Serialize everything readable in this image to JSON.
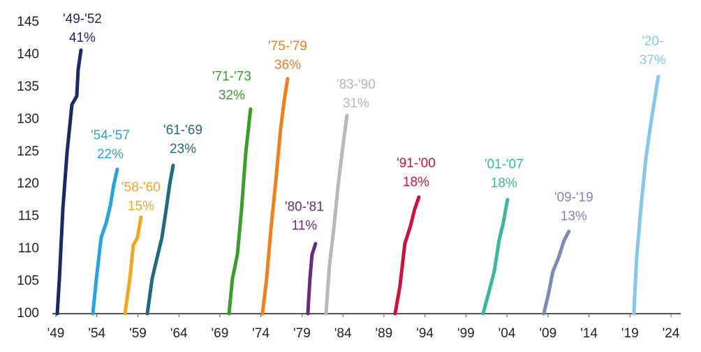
{
  "chart_data": {
    "type": "line",
    "xlim": [
      1949,
      2024
    ],
    "xticks": [
      {
        "value": 1949,
        "label": "'49"
      },
      {
        "value": 1954,
        "label": "'54"
      },
      {
        "value": 1959,
        "label": "'59"
      },
      {
        "value": 1964,
        "label": "'64"
      },
      {
        "value": 1969,
        "label": "'69"
      },
      {
        "value": 1974,
        "label": "'74"
      },
      {
        "value": 1979,
        "label": "'79"
      },
      {
        "value": 1984,
        "label": "'84"
      },
      {
        "value": 1989,
        "label": "'89"
      },
      {
        "value": 1994,
        "label": "'94"
      },
      {
        "value": 1999,
        "label": "'99"
      },
      {
        "value": 2004,
        "label": "'04"
      },
      {
        "value": 2009,
        "label": "'09"
      },
      {
        "value": 2014,
        "label": "'14"
      },
      {
        "value": 2019,
        "label": "'19"
      },
      {
        "value": 2024,
        "label": "'24"
      }
    ],
    "ylim": [
      100,
      145
    ],
    "yticks": [
      100,
      105,
      110,
      115,
      120,
      125,
      130,
      135,
      140,
      145
    ],
    "grid": false,
    "series": [
      {
        "name": "'49-'52",
        "label": "41%",
        "color": "#1b2a66",
        "x": [
          1949.17,
          1949.43,
          1949.85,
          1950.36,
          1950.96,
          1951.55,
          1951.72,
          1952.06
        ],
        "values": [
          100,
          105.4,
          116.1,
          124.8,
          132.3,
          133.6,
          137.7,
          140.7
        ]
      },
      {
        "name": "'54-'57",
        "label": "22%",
        "color": "#29a3dc",
        "x": [
          1953.51,
          1953.94,
          1954.53,
          1955.13,
          1955.64,
          1956.06,
          1956.49
        ],
        "values": [
          100,
          105.4,
          111.8,
          114,
          116.7,
          119.9,
          122.3
        ]
      },
      {
        "name": "'58-'60",
        "label": "15%",
        "color": "#f0a81c",
        "x": [
          1957.43,
          1958.02,
          1958.45,
          1958.96,
          1959.38
        ],
        "values": [
          100,
          105.4,
          110.6,
          111.8,
          114.9
        ]
      },
      {
        "name": "'61-'69",
        "label": "23%",
        "color": "#1f6b7f",
        "x": [
          1960.15,
          1960.74,
          1961.43,
          1961.94,
          1962.45,
          1962.87,
          1963.3
        ],
        "values": [
          100,
          105.4,
          109.1,
          111.8,
          116.1,
          119.9,
          122.9
        ]
      },
      {
        "name": "'71-'73",
        "label": "32%",
        "color": "#3a9e2a",
        "x": [
          1970.11,
          1970.53,
          1971.13,
          1971.64,
          1972.15,
          1972.74
        ],
        "values": [
          100,
          105.4,
          109.1,
          116.1,
          124.8,
          131.6
        ]
      },
      {
        "name": "'75-'79",
        "label": "36%",
        "color": "#f07f1e",
        "x": [
          1974.19,
          1974.7,
          1975.21,
          1975.81,
          1976.4,
          1976.83,
          1977.26
        ],
        "values": [
          100,
          105.4,
          112.9,
          120.4,
          128.5,
          132.8,
          136.3
        ]
      },
      {
        "name": "'80-'81",
        "label": "11%",
        "color": "#6b2a7a",
        "x": [
          1979.72,
          1979.98,
          1980.23,
          1980.66
        ],
        "values": [
          100,
          105.4,
          109.1,
          110.8
        ]
      },
      {
        "name": "'83-'90",
        "label": "31%",
        "color": "#b8b8b8",
        "x": [
          1981.94,
          1982.36,
          1982.87,
          1983.38,
          1983.89,
          1984.49
        ],
        "values": [
          100,
          107.5,
          112.9,
          119.4,
          124.8,
          130.6
        ]
      },
      {
        "name": "'91-'00",
        "label": "18%",
        "color": "#c8143c",
        "x": [
          1990.36,
          1990.96,
          1991.55,
          1992.23,
          1992.74,
          1993.26
        ],
        "values": [
          100,
          104.3,
          110.8,
          113.5,
          116.1,
          118
        ]
      },
      {
        "name": "'01-'07",
        "label": "18%",
        "color": "#3ab7a0",
        "x": [
          2001.09,
          2001.77,
          2002.45,
          2003.04,
          2003.55,
          2004.06
        ],
        "values": [
          100,
          103.2,
          106.5,
          111.3,
          114,
          117.6
        ]
      },
      {
        "name": "'09-'19",
        "label": "13%",
        "color": "#7b8ab8",
        "x": [
          2008.49,
          2009.0,
          2009.6,
          2010.28,
          2010.96,
          2011.55
        ],
        "values": [
          100,
          102.7,
          106.5,
          108.6,
          111.3,
          112.7
        ]
      },
      {
        "name": "'20-",
        "label": "37%",
        "color": "#85c8ea",
        "x": [
          2019.47,
          2019.81,
          2020.32,
          2020.91,
          2021.51,
          2022.45
        ],
        "values": [
          100,
          108.6,
          116.1,
          123.7,
          129.1,
          136.6
        ]
      }
    ]
  }
}
